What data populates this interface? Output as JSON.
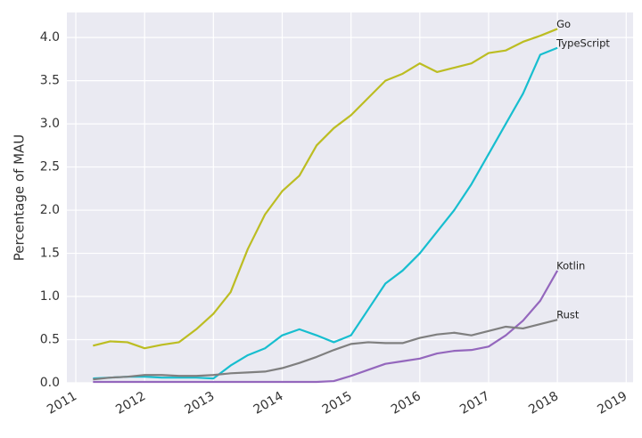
{
  "chart_data": {
    "type": "line",
    "ylabel": "Percentage of MAU",
    "x": [
      2011.25,
      2011.5,
      2011.75,
      2012.0,
      2012.25,
      2012.5,
      2012.75,
      2013.0,
      2013.25,
      2013.5,
      2013.75,
      2014.0,
      2014.25,
      2014.5,
      2014.75,
      2015.0,
      2015.25,
      2015.5,
      2015.75,
      2016.0,
      2016.25,
      2016.5,
      2016.75,
      2017.0,
      2017.25,
      2017.5,
      2017.75,
      2018.0
    ],
    "series": [
      {
        "name": "Go",
        "color": "#bcbd22",
        "values": [
          0.43,
          0.48,
          0.47,
          0.4,
          0.44,
          0.47,
          0.62,
          0.8,
          1.05,
          1.55,
          1.95,
          2.22,
          2.4,
          2.75,
          2.95,
          3.1,
          3.3,
          3.5,
          3.58,
          3.7,
          3.6,
          3.65,
          3.7,
          3.82,
          3.85,
          3.95,
          4.02,
          4.1
        ]
      },
      {
        "name": "TypeScript",
        "color": "#17becf",
        "values": [
          0.05,
          0.06,
          0.07,
          0.07,
          0.06,
          0.06,
          0.06,
          0.05,
          0.2,
          0.32,
          0.4,
          0.55,
          0.62,
          0.55,
          0.47,
          0.55,
          0.85,
          1.15,
          1.3,
          1.5,
          1.75,
          2.0,
          2.3,
          2.65,
          3.0,
          3.35,
          3.8,
          3.88
        ]
      },
      {
        "name": "Kotlin",
        "color": "#9467bd",
        "values": [
          0.01,
          0.01,
          0.01,
          0.01,
          0.01,
          0.01,
          0.01,
          0.01,
          0.01,
          0.01,
          0.01,
          0.01,
          0.01,
          0.01,
          0.02,
          0.08,
          0.15,
          0.22,
          0.25,
          0.28,
          0.34,
          0.37,
          0.38,
          0.42,
          0.55,
          0.72,
          0.95,
          1.3
        ]
      },
      {
        "name": "Rust",
        "color": "#7f7f7f",
        "values": [
          0.04,
          0.06,
          0.07,
          0.09,
          0.09,
          0.08,
          0.08,
          0.09,
          0.11,
          0.12,
          0.13,
          0.17,
          0.23,
          0.3,
          0.38,
          0.45,
          0.47,
          0.46,
          0.46,
          0.52,
          0.56,
          0.58,
          0.55,
          0.6,
          0.65,
          0.63,
          0.68,
          0.73
        ]
      }
    ],
    "xlim": [
      2010.87,
      2019.1
    ],
    "xticks": [
      2011,
      2012,
      2013,
      2014,
      2015,
      2016,
      2017,
      2018,
      2019
    ],
    "ylim": [
      0,
      4.29
    ],
    "yticks": [
      {
        "value": 0,
        "label": "0.0"
      },
      0.5,
      {
        "value": 1,
        "label": "1.0"
      },
      1.5,
      {
        "value": 2,
        "label": "2.0"
      },
      2.5,
      {
        "value": 3,
        "label": "3.0"
      },
      3.5,
      {
        "value": 4,
        "label": "4.0"
      }
    ],
    "grid": true,
    "background": "#eaeaf2"
  }
}
